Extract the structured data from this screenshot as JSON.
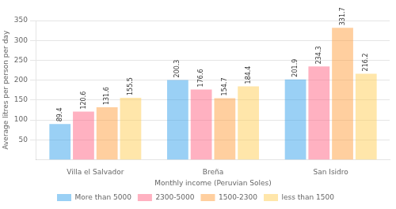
{
  "chart_data": {
    "type": "bar",
    "categories": [
      "Villa el Salvador",
      "Breña",
      "San Isidro"
    ],
    "series": [
      {
        "name": "More than 5000",
        "values": [
          89.4,
          200.3,
          201.9
        ]
      },
      {
        "name": "2300-5000",
        "values": [
          120.6,
          176.6,
          234.3
        ]
      },
      {
        "name": "1500-2300",
        "values": [
          131.6,
          154.7,
          331.7
        ]
      },
      {
        "name": "less than 1500",
        "values": [
          155.5,
          184.4,
          216.2
        ]
      }
    ],
    "ylabel": "Average litres per person per day",
    "xlabel": "Monthly income (Peruvian Soles)",
    "ylim": [
      0,
      350
    ],
    "yticks": [
      50,
      100,
      150,
      200,
      250,
      300,
      350
    ],
    "grid": true,
    "legend": "bottom",
    "data_labels": true
  }
}
